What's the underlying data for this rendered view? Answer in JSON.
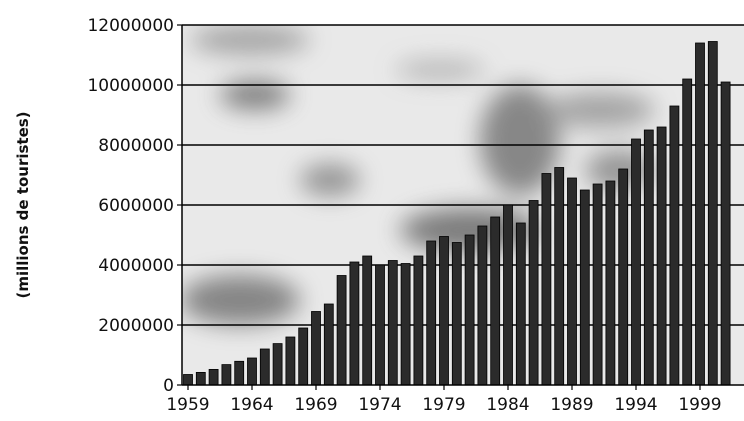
{
  "chart_data": {
    "type": "bar",
    "title": "",
    "xlabel": "",
    "ylabel": "(millions de touristes)",
    "ylim": [
      0,
      12000000
    ],
    "yticks": [
      0,
      2000000,
      4000000,
      6000000,
      8000000,
      10000000,
      12000000
    ],
    "ytick_labels": [
      "0",
      "2000000",
      "4000000",
      "6000000",
      "8000000",
      "10000000",
      "12000000"
    ],
    "xtick_labels": [
      "1959",
      "1964",
      "1969",
      "1974",
      "1979",
      "1984",
      "1989",
      "1994",
      "1999"
    ],
    "grid": "horizontal",
    "legend": "none",
    "bar_color": "#2b2b2b",
    "categories": [
      "1959",
      "1960",
      "1961",
      "1962",
      "1963",
      "1964",
      "1965",
      "1966",
      "1967",
      "1968",
      "1969",
      "1970",
      "1971",
      "1972",
      "1973",
      "1974",
      "1975",
      "1976",
      "1977",
      "1978",
      "1979",
      "1980",
      "1981",
      "1982",
      "1983",
      "1984",
      "1985",
      "1986",
      "1987",
      "1988",
      "1989",
      "1990",
      "1991",
      "1992",
      "1993",
      "1994",
      "1995",
      "1996",
      "1997",
      "1998",
      "1999",
      "2000",
      "2001"
    ],
    "values": [
      350000,
      420000,
      520000,
      680000,
      790000,
      900000,
      1200000,
      1380000,
      1600000,
      1900000,
      2450000,
      2700000,
      3650000,
      4100000,
      4300000,
      4000000,
      4150000,
      4050000,
      4300000,
      4800000,
      4950000,
      4750000,
      5000000,
      5300000,
      5600000,
      6000000,
      5400000,
      6150000,
      7050000,
      7250000,
      6900000,
      6500000,
      6700000,
      6800000,
      7200000,
      8200000,
      8500000,
      8600000,
      9300000,
      10200000,
      11400000,
      11450000,
      10100000
    ]
  }
}
